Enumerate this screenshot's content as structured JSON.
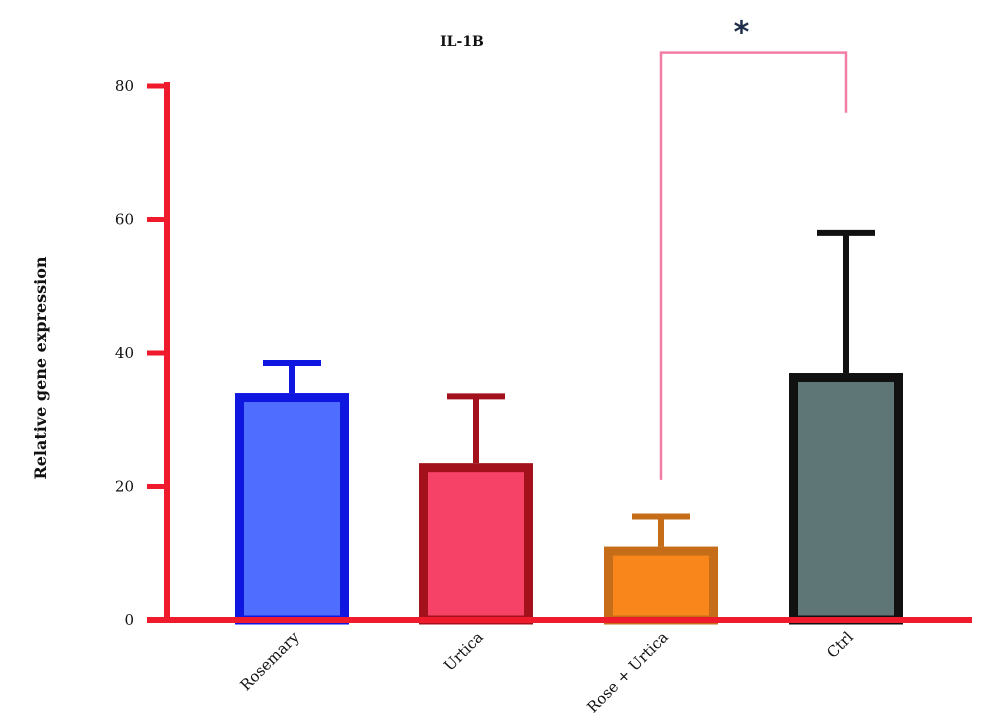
{
  "chart_data": {
    "type": "bar",
    "title": "IL-1B",
    "xlabel": "",
    "ylabel": "Relative gene expression",
    "ylim": [
      0,
      80
    ],
    "yticks": [
      0,
      20,
      40,
      60,
      80
    ],
    "categories": [
      "Rosemary",
      "Urtica",
      "Rose + Urtica",
      "Ctrl"
    ],
    "values": [
      34,
      23.5,
      11,
      37
    ],
    "errors": [
      4.5,
      10,
      4.5,
      21
    ],
    "fill_colors": [
      "#4f6eff",
      "#f64266",
      "#f8861a",
      "#5f7677"
    ],
    "edge_colors": [
      "#0e16e0",
      "#a3121c",
      "#c56d19",
      "#111111"
    ],
    "axis_color": "#ef1a2b",
    "grid": false,
    "legend": "none",
    "significance": {
      "from": "Rose + Urtica",
      "to": "Ctrl",
      "left_bottom": 21,
      "right_bottom": 76,
      "top": 85,
      "label": "*",
      "color": "#f07ea4"
    }
  }
}
